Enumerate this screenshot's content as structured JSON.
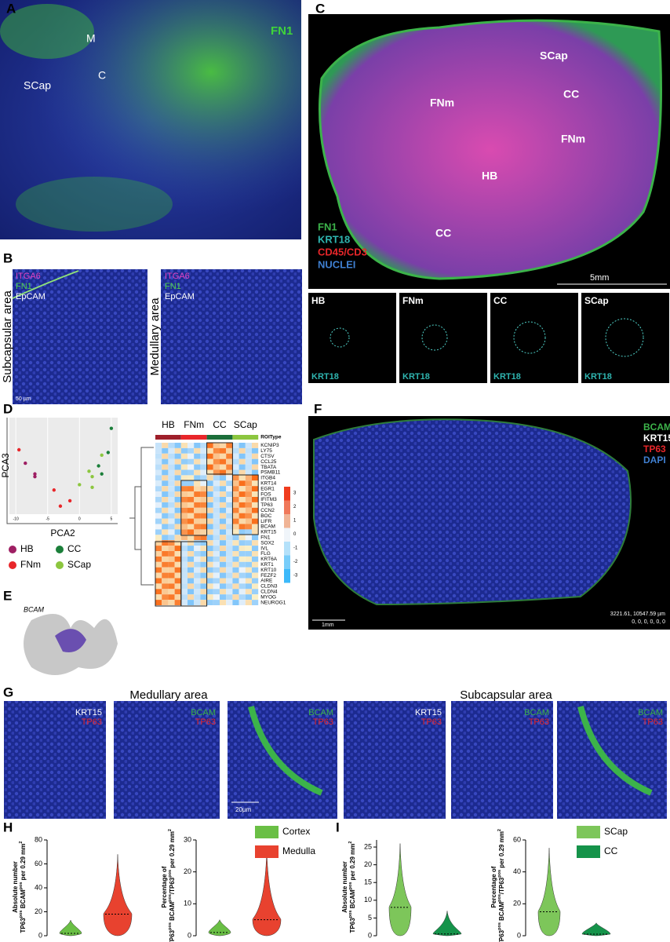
{
  "panel_A": {
    "letter": "A",
    "labels": [
      "M",
      "C",
      "SCap",
      "FN1"
    ]
  },
  "panel_B": {
    "letter": "B",
    "left_title": "Subcapsular area",
    "right_title": "Medullary area",
    "stains": [
      "ITGA6",
      "FN1",
      "EpCAM"
    ],
    "scale": "50 µm"
  },
  "panel_C": {
    "letter": "C",
    "regions": [
      "SCap",
      "FNm",
      "CC",
      "FNm",
      "HB",
      "CC"
    ],
    "legend": [
      "FN1",
      "KRT18",
      "CD45/CD3",
      "NUCLEI"
    ],
    "scale": "5mm",
    "insets": [
      "HB",
      "FNm",
      "CC",
      "SCap"
    ],
    "inset_stain": "KRT18"
  },
  "panel_D": {
    "letter": "D",
    "pca": {
      "xlabel": "PCA2",
      "ylabel": "PCA3",
      "xlim": [
        -11,
        6
      ],
      "ylim": [
        -8,
        10
      ],
      "xticks": [
        -10,
        -5,
        0,
        5
      ],
      "groups": [
        {
          "name": "HB",
          "color": "#9e1f63"
        },
        {
          "name": "CC",
          "color": "#1b7f3a"
        },
        {
          "name": "FNm",
          "color": "#e8262a"
        },
        {
          "name": "SCap",
          "color": "#8cc63f"
        }
      ],
      "points": {
        "x": [
          -9.5,
          -8.5,
          -7,
          -7,
          -4,
          -1.5,
          -3,
          5,
          4.5,
          3.5,
          3,
          2,
          1.5,
          3.5,
          2,
          0
        ],
        "y": [
          4,
          1.5,
          -0.5,
          -1,
          -3.5,
          -5.5,
          -6.5,
          8,
          3.5,
          3,
          1,
          -1,
          0,
          -0.5,
          -3,
          -2.5
        ],
        "group": [
          2,
          0,
          0,
          0,
          2,
          2,
          2,
          1,
          1,
          3,
          1,
          3,
          3,
          1,
          3,
          3
        ]
      }
    },
    "heatmap": {
      "columns": [
        "HB",
        "FNm",
        "CC",
        "SCap"
      ],
      "annotation": "ROIType",
      "genes": [
        "KCNIP3",
        "LY75",
        "CTSV",
        "CCL25",
        "TBATA",
        "PSMB11",
        "ITGB4",
        "KRT14",
        "EGR1",
        "FOS",
        "IFITM3",
        "TP63",
        "CCN2",
        "BOC",
        "LIFR",
        "BCAM",
        "KRT15",
        "FN1",
        "SOX2",
        "IVL",
        "FLG",
        "KRT6A",
        "KRT1",
        "KRT10",
        "FEZF2",
        "AIRE",
        "CLDN3",
        "CLDN4",
        "MYOG",
        "NEUROG1"
      ],
      "colorbar": [
        3,
        2,
        1,
        0,
        -1,
        -2,
        -3
      ]
    }
  },
  "panel_E": {
    "letter": "E",
    "gene": "BCAM"
  },
  "panel_F": {
    "letter": "F",
    "legend": [
      "BCAM",
      "KRT15",
      "TP63",
      "DAPI"
    ],
    "scale": "1mm",
    "coords": "3221.61, 10547.59 µm",
    "channels": "0, 0, 0, 0, 0, 0"
  },
  "panel_G": {
    "letter": "G",
    "titles": [
      "Medullary area",
      "Subcapsular area"
    ],
    "stains": [
      [
        "KRT15",
        "TP63"
      ],
      [
        "BCAM",
        "TP63"
      ],
      [
        "BCAM",
        "TP63"
      ],
      [
        "KRT15",
        "TP63"
      ],
      [
        "BCAM",
        "TP63"
      ],
      [
        "BCAM",
        "TP63"
      ]
    ],
    "scale": "20µm"
  },
  "panel_H": {
    "letter": "H",
    "legend": [
      {
        "name": "Cortex",
        "color": "#6abf45"
      },
      {
        "name": "Medulla",
        "color": "#e8422f"
      }
    ],
    "charts": [
      {
        "ylabel": [
          "Absolute number",
          "TP63",
          "pos",
          " BCAM",
          "pos",
          " per 0.29 mm",
          "2"
        ],
        "ylim": [
          0,
          80
        ],
        "yticks": [
          0,
          20,
          40,
          60,
          80
        ],
        "violins": [
          {
            "max": 13,
            "median": 2
          },
          {
            "max": 68,
            "median": 18
          }
        ]
      },
      {
        "ylabel": [
          "Percentage of",
          "TP63",
          "pos",
          " BCAM",
          "pos",
          "/TP63",
          "pos",
          " per 0.29 mm",
          "2"
        ],
        "ylim": [
          0,
          30
        ],
        "yticks": [
          0,
          10,
          20,
          30
        ],
        "violins": [
          {
            "max": 5,
            "median": 1
          },
          {
            "max": 27,
            "median": 5
          }
        ]
      }
    ]
  },
  "panel_I": {
    "letter": "I",
    "legend": [
      {
        "name": "SCap",
        "color": "#7dc65a"
      },
      {
        "name": "CC",
        "color": "#15934a"
      }
    ],
    "charts": [
      {
        "ylabel": [
          "Absolute number",
          "TP63",
          "pos",
          " BCAM",
          "pos",
          " per 0.29 mm",
          "2"
        ],
        "ylim": [
          0,
          27
        ],
        "yticks": [
          0,
          5,
          10,
          15,
          20,
          25
        ],
        "violins": [
          {
            "max": 26,
            "median": 8
          },
          {
            "max": 7,
            "median": 0.5
          }
        ]
      },
      {
        "ylabel": [
          "Percentage of",
          "TP63",
          "pos",
          " BCAM",
          "pos",
          "/TP63",
          "pos",
          " per 0.29 mm",
          "2"
        ],
        "ylim": [
          0,
          60
        ],
        "yticks": [
          0,
          20,
          40,
          60
        ],
        "violins": [
          {
            "max": 55,
            "median": 15
          },
          {
            "max": 8,
            "median": 1
          }
        ]
      }
    ]
  }
}
